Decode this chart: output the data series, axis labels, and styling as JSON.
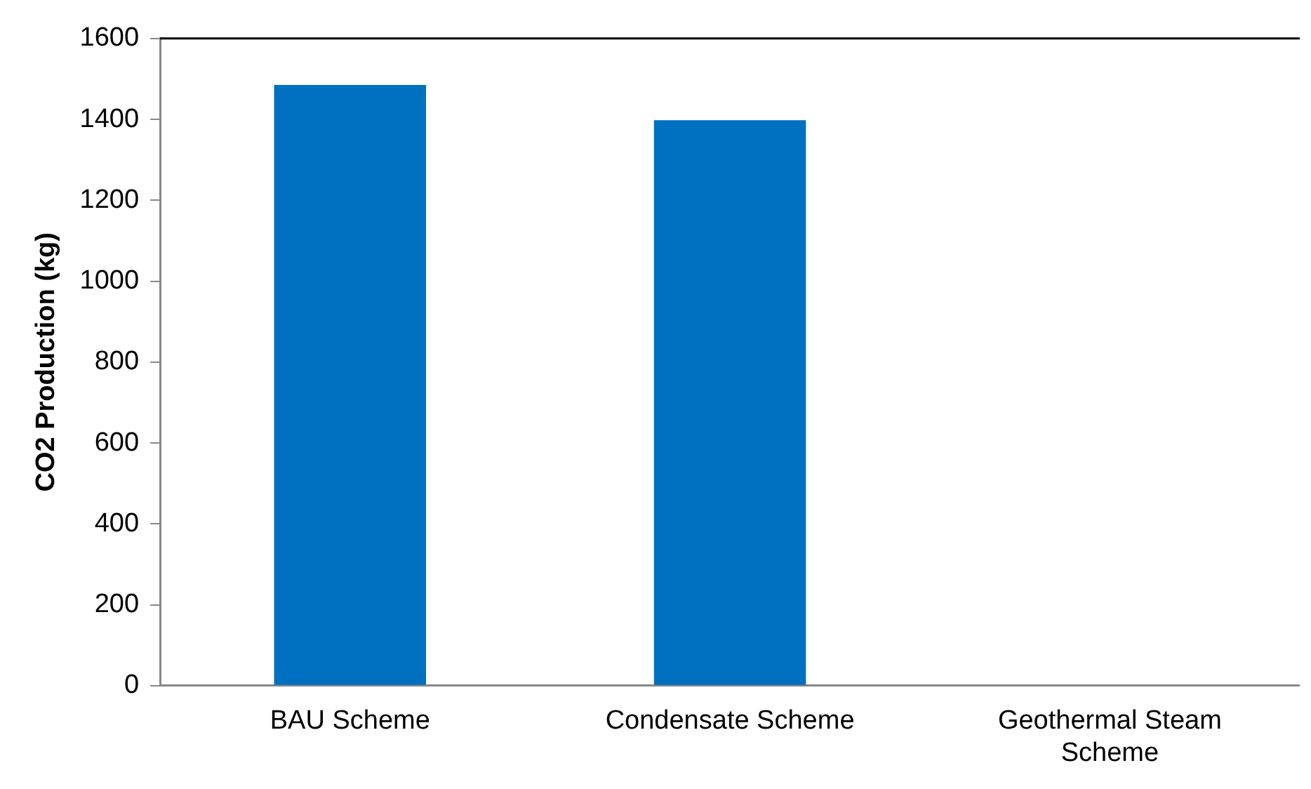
{
  "chart_data": {
    "type": "bar",
    "ylabel": "CO2 Production (kg)",
    "categories": [
      "BAU Scheme",
      "Condensate Scheme",
      "Geothermal Steam Scheme"
    ],
    "values": [
      1485,
      1398,
      0
    ],
    "color": "#0070c0",
    "ylim": [
      0,
      1600
    ],
    "yticks": [
      0,
      200,
      400,
      600,
      800,
      1000,
      1200,
      1400,
      1600
    ],
    "grid": false,
    "legend": false
  }
}
